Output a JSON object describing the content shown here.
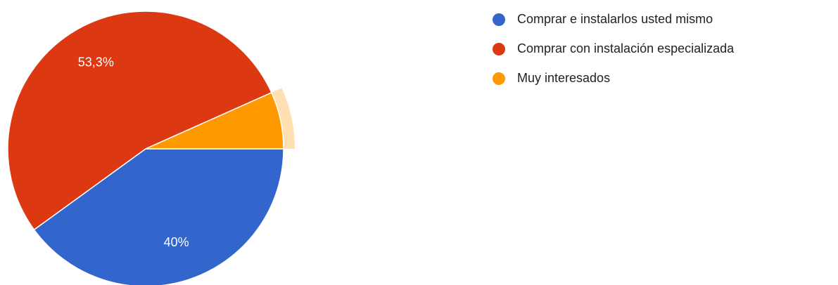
{
  "chart_data": {
    "type": "pie",
    "categories": [
      "Comprar e instalarlos usted mismo",
      "Comprar con instalación especializada",
      "Muy interesados"
    ],
    "values": [
      40,
      53.3,
      6.7
    ],
    "value_labels": [
      "40%",
      "53,3%",
      null
    ],
    "colors": [
      "#3366cc",
      "#dc3912",
      "#ff9900"
    ],
    "legend": "right"
  }
}
